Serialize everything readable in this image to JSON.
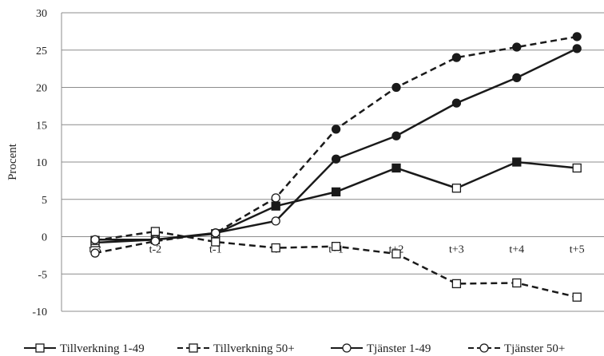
{
  "chart_data": {
    "type": "line",
    "title": "",
    "xlabel": "",
    "ylabel": "Procent",
    "categories": [
      "t-3",
      "t-2",
      "t-1",
      "t",
      "t+1",
      "t+2",
      "t+3",
      "t+4",
      "t+5"
    ],
    "ylim": [
      -10,
      30
    ],
    "yticks": [
      30,
      25,
      20,
      15,
      10,
      5,
      0,
      -5,
      -10
    ],
    "grid": "horizontal",
    "legend_position": "bottom",
    "series": [
      {
        "name": "Tillverkning 1-49",
        "values": [
          -0.8,
          -0.4,
          0.4,
          4.1,
          6.0,
          9.2,
          6.5,
          10.0,
          9.2
        ],
        "line_style": "solid",
        "marker": "square",
        "filled_markers": [
          false,
          false,
          false,
          true,
          true,
          true,
          false,
          true,
          false
        ]
      },
      {
        "name": "Tillverkning 50+",
        "values": [
          -0.5,
          0.7,
          -0.7,
          -1.5,
          -1.3,
          -2.3,
          -6.3,
          -6.2,
          -8.1
        ],
        "line_style": "dashed",
        "marker": "square",
        "filled_markers": [
          false,
          false,
          false,
          false,
          false,
          false,
          false,
          false,
          false
        ]
      },
      {
        "name": "Tjänster 1-49",
        "values": [
          -0.4,
          -0.4,
          0.5,
          2.1,
          10.4,
          13.5,
          17.9,
          21.3,
          25.2
        ],
        "line_style": "solid",
        "marker": "circle",
        "filled_markers": [
          false,
          false,
          false,
          false,
          true,
          true,
          true,
          true,
          true
        ]
      },
      {
        "name": "Tjänster 50+",
        "values": [
          -2.2,
          -0.6,
          0.5,
          5.2,
          14.4,
          20.0,
          24.0,
          25.4,
          26.8
        ],
        "line_style": "dashed",
        "marker": "circle",
        "filled_markers": [
          false,
          false,
          false,
          false,
          true,
          true,
          true,
          true,
          true
        ]
      }
    ],
    "colors": {
      "line": "#1a1a1a",
      "grid": "#8c8c8c",
      "background": "#ffffff"
    }
  }
}
